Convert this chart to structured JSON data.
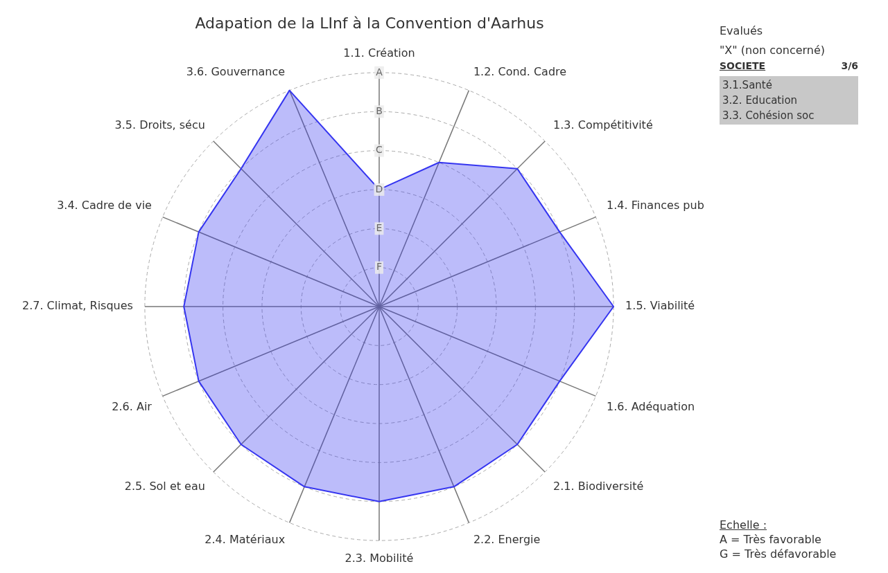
{
  "chart_data": {
    "type": "radar",
    "title": "Adapation de la LInf à la Convention d'Aarhus",
    "categories": [
      "1.1. Création",
      "1.2. Cond. Cadre",
      "1.3. Compétitivité",
      "1.4. Finances pub",
      "1.5. Viabilité",
      "1.6. Adéquation",
      "2.1. Biodiversité",
      "2.2. Energie",
      "2.3. Mobilité",
      "2.4. Matériaux",
      "2.5. Sol et eau",
      "2.6. Air",
      "2.7. Climat, Risques",
      "3.4. Cadre de vie",
      "3.5. Droits, sécu",
      "3.6. Gouvernance"
    ],
    "series": [
      {
        "color": "#3535f0",
        "values": [
          3,
          4,
          5,
          5,
          6,
          5,
          5,
          5,
          5,
          5,
          5,
          5,
          5,
          5,
          5,
          6
        ]
      }
    ],
    "ylim": [
      0,
      6
    ],
    "yticks": [
      {
        "value": 1,
        "label": "F"
      },
      {
        "value": 2,
        "label": "E"
      },
      {
        "value": 3,
        "label": "D"
      },
      {
        "value": 4,
        "label": "C"
      },
      {
        "value": 5,
        "label": "B"
      },
      {
        "value": 6,
        "label": "A"
      }
    ],
    "grid": true,
    "legend": false,
    "marker": "none",
    "line_style": "solid",
    "annotations": [
      "Evalués",
      "\"X\" (non concerné)",
      "SOCIETE",
      "3/6",
      "3.1.Santé",
      "3.2. Education",
      "3.3. Cohésion soc",
      "Echelle :",
      "A = Très favorable",
      "G = Très défavorable"
    ]
  }
}
